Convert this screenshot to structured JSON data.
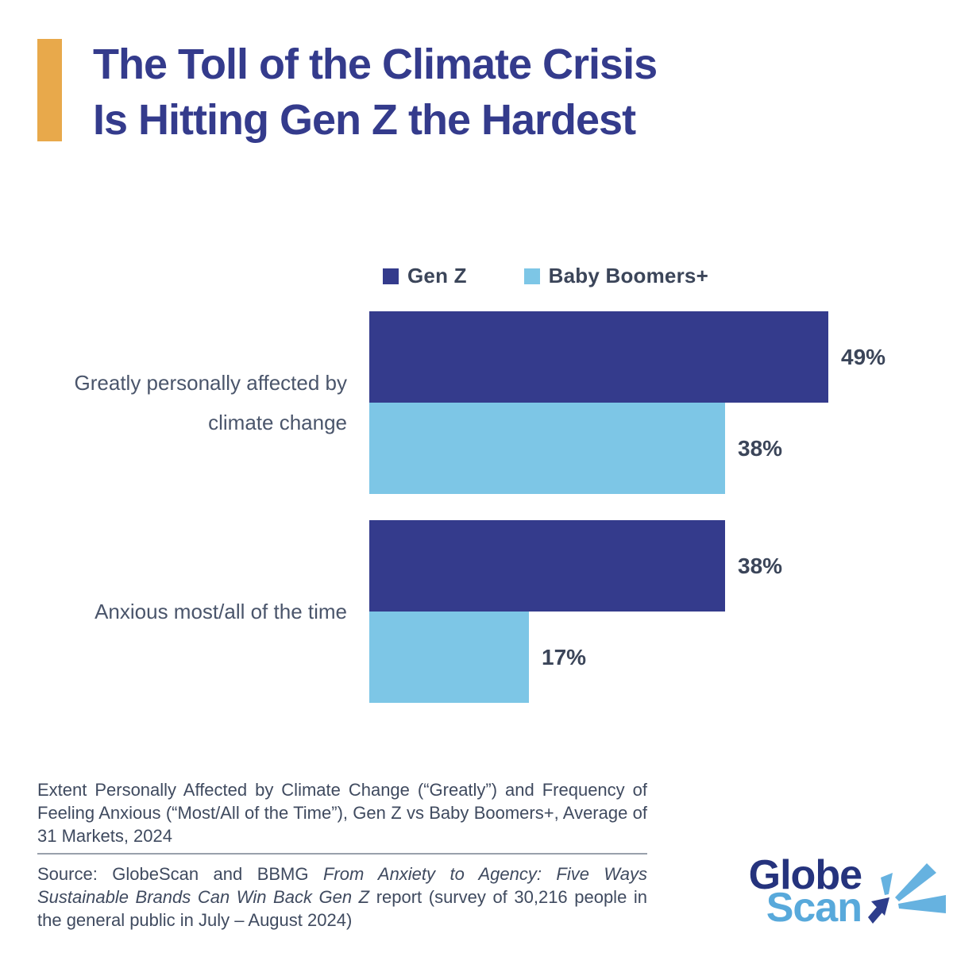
{
  "header": {
    "title_line1": "The Toll of the Climate Crisis",
    "title_line2": "Is Hitting Gen Z the Hardest",
    "title_color": "#343B8C",
    "accent_color": "#E8A94B"
  },
  "chart_data": {
    "type": "bar",
    "orientation": "horizontal",
    "categories": [
      "Greatly personally affected by climate change",
      "Anxious most/all of the time"
    ],
    "series": [
      {
        "name": "Gen Z",
        "color": "#343B8C",
        "values": [
          49,
          38
        ]
      },
      {
        "name": "Baby Boomers+",
        "color": "#7DC6E6",
        "values": [
          38,
          17
        ]
      }
    ],
    "value_suffix": "%",
    "value_labels": [
      [
        "49%",
        "38%"
      ],
      [
        "38%",
        "17%"
      ]
    ],
    "legend_position": "top",
    "grid": false,
    "axes_shown": false,
    "xlim": [
      0,
      57
    ]
  },
  "footer": {
    "caption": "Extent Personally Affected by Climate Change (“Greatly”) and Frequency of Feeling Anxious (“Most/All of the Time”), Gen Z vs Baby Boomers+, Average of 31 Markets, 2024",
    "source_prefix": "Source: GlobeScan and BBMG ",
    "source_italic": "From Anxiety to Agency: Five Ways Sustainable Brands Can Win Back Gen Z",
    "source_suffix": " report (survey of 30,216 people in the general public in July – August 2024)"
  },
  "logo": {
    "line1": "Globe",
    "line2": "Scan",
    "color_dark": "#25337D",
    "color_light": "#58A9DB",
    "icon_ray_color": "#66B2E0",
    "icon_arrow_color": "#2D3D8C"
  }
}
